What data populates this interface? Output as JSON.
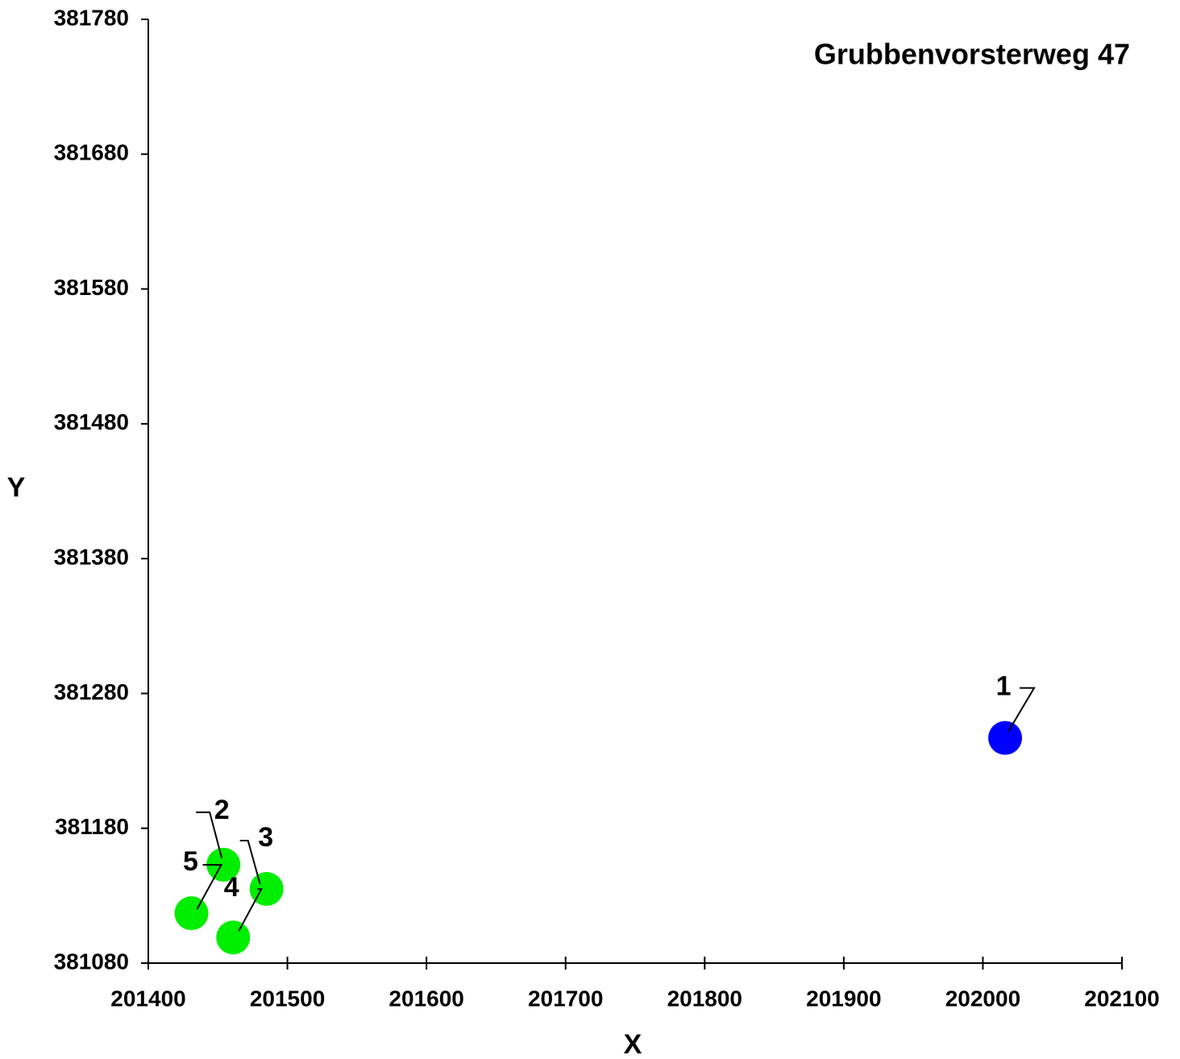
{
  "chart_data": {
    "type": "scatter",
    "title": "Grubbenvorsterweg 47",
    "xlabel": "X",
    "ylabel": "Y",
    "x": [
      202016,
      201454,
      201485,
      201461,
      201431
    ],
    "y": [
      381247,
      381153,
      381135,
      381099,
      381117
    ],
    "point_labels": [
      "1",
      "2",
      "3",
      "4",
      "5"
    ],
    "colors": [
      "#0000ff",
      "#00ee00",
      "#00ee00",
      "#00ee00",
      "#00ee00"
    ],
    "xlim": [
      201400,
      202100
    ],
    "xticks": [
      201400,
      201500,
      201600,
      201700,
      201800,
      201900,
      202000,
      202100
    ],
    "ylim": [
      381080,
      381780
    ],
    "yticks": [
      381080,
      381180,
      381280,
      381380,
      381480,
      381580,
      381680,
      381780
    ],
    "grid": false
  }
}
